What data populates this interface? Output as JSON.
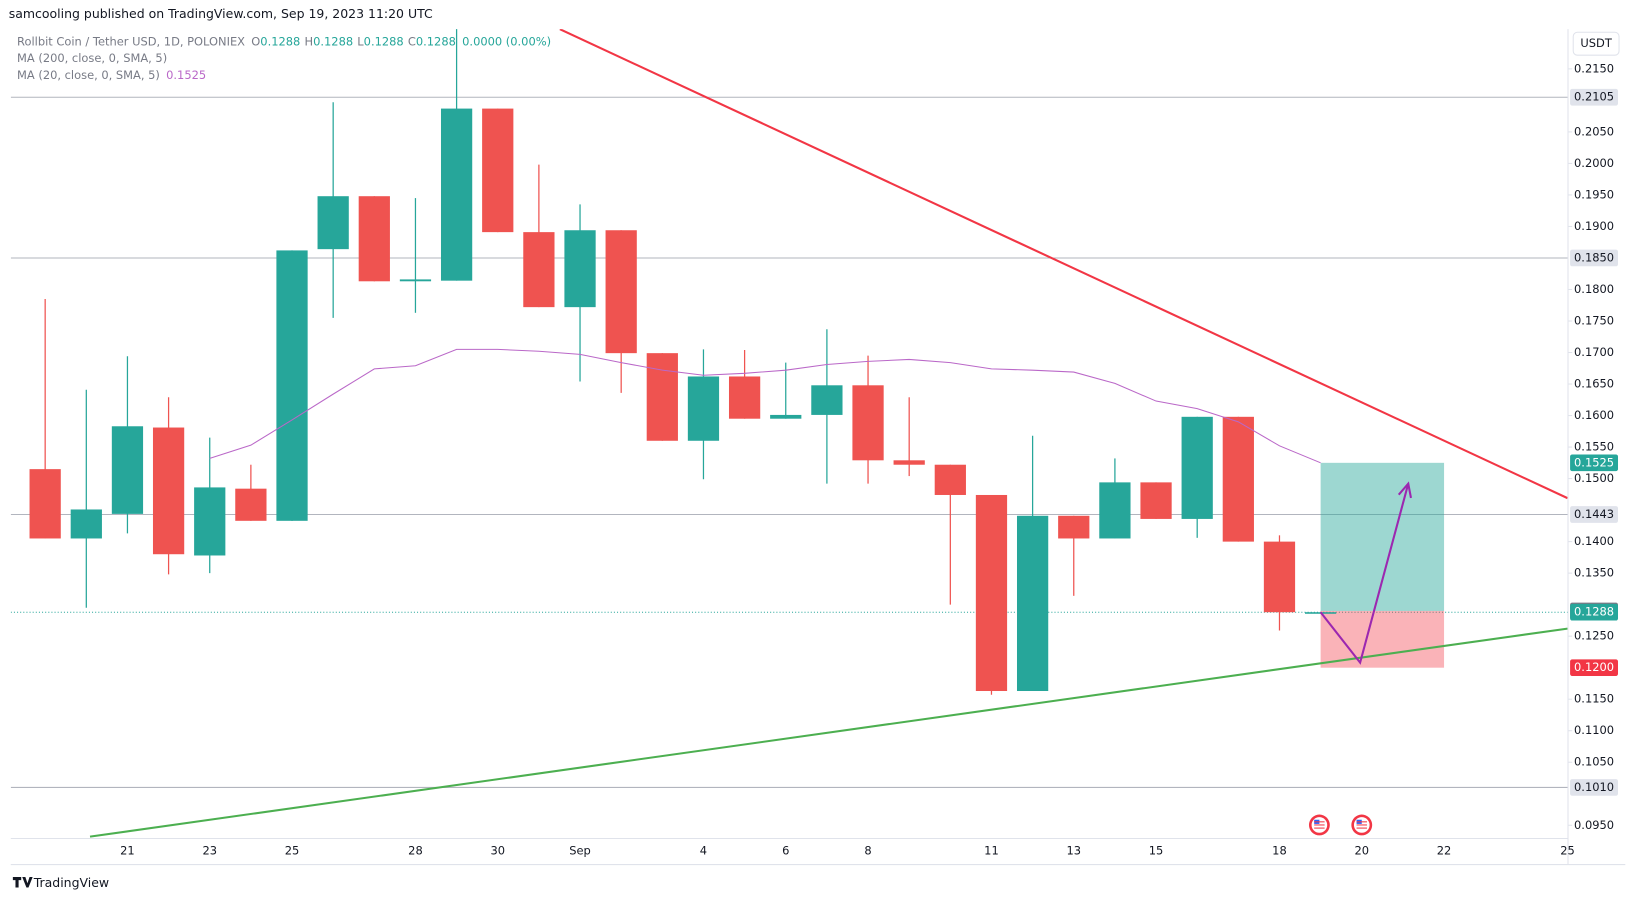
{
  "header": {
    "publisher": "samcooling published on TradingView.com, Sep 19, 2023 11:20 UTC"
  },
  "chart_data": {
    "type": "candlestick",
    "symbol": "Rollbit Coin / Tether USD, 1D, POLONIEX",
    "ohlc_legend": [
      {
        "key": "O",
        "value": "0.1288"
      },
      {
        "key": "H",
        "value": "0.1288"
      },
      {
        "key": "L",
        "value": "0.1288"
      },
      {
        "key": "C",
        "value": "0.1288"
      }
    ],
    "change": "0.0000 (0.00%)",
    "indicators": [
      {
        "name": "MA (200, close, 0, SMA, 5)"
      },
      {
        "name": "MA (20, close, 0, SMA, 5)",
        "value_label": "0.1525",
        "color": "#ba68c8",
        "values": [
          null,
          null,
          null,
          null,
          null,
          0.1532,
          0.1553,
          0.1593,
          0.1634,
          0.1674,
          0.1679,
          0.1705,
          0.1705,
          0.1702,
          0.1697,
          0.1684,
          0.1672,
          0.1664,
          0.1667,
          0.1672,
          0.1681,
          0.1686,
          0.1689,
          0.1684,
          0.1674,
          0.1672,
          0.1669,
          0.1651,
          0.1623,
          0.1611,
          0.159,
          0.1552,
          0.1525,
          null,
          null,
          null,
          null,
          null,
          null
        ]
      }
    ],
    "currency": "USDT",
    "categories": [
      null,
      null,
      null,
      "21",
      null,
      "23",
      null,
      "25",
      null,
      null,
      "28",
      null,
      "30",
      null,
      "Sep",
      null,
      null,
      "4",
      null,
      "6",
      null,
      "8",
      null,
      null,
      "11",
      null,
      "13",
      null,
      "15",
      null,
      null,
      "18",
      null,
      "20",
      null,
      "22",
      null,
      null,
      "25"
    ],
    "open": [
      null,
      0.1515,
      0.1405,
      0.1444,
      0.1581,
      0.1378,
      0.1484,
      0.1433,
      0.1864,
      0.1948,
      0.1813,
      0.1814,
      0.2087,
      0.1891,
      0.1772,
      0.1894,
      0.1699,
      0.156,
      0.1662,
      0.1595,
      0.1601,
      0.1648,
      0.1529,
      0.1522,
      0.1474,
      0.1163,
      0.1441,
      0.1405,
      0.1494,
      0.1436,
      0.1598,
      0.14,
      0.1288,
      null,
      null,
      null,
      null,
      null,
      null
    ],
    "high": [
      null,
      0.1785,
      0.1641,
      0.1694,
      0.1629,
      0.1565,
      0.1522,
      0.1862,
      0.2097,
      0.1948,
      0.1945,
      0.2215,
      0.2087,
      0.1998,
      0.1935,
      0.1894,
      0.1699,
      0.1705,
      0.1704,
      0.1684,
      0.1737,
      0.1695,
      0.1629,
      0.1522,
      0.1474,
      0.1568,
      0.1441,
      0.1532,
      0.1494,
      0.1598,
      0.1598,
      0.141,
      0.1288,
      null,
      null,
      null,
      null,
      null,
      null
    ],
    "low": [
      null,
      0.1405,
      0.1295,
      0.1413,
      0.1348,
      0.135,
      0.1433,
      0.1433,
      0.1755,
      0.1813,
      0.1763,
      0.1814,
      0.1891,
      0.1772,
      0.1654,
      0.1636,
      0.156,
      0.1499,
      0.1595,
      0.1595,
      0.1492,
      0.1492,
      0.1504,
      0.13,
      0.1157,
      0.1163,
      0.1314,
      0.1405,
      0.1436,
      0.1406,
      0.14,
      0.1259,
      0.1288,
      null,
      null,
      null,
      null,
      null,
      null
    ],
    "close": [
      null,
      0.1405,
      0.1451,
      0.1583,
      0.138,
      0.1486,
      0.1433,
      0.1862,
      0.1948,
      0.1813,
      0.1816,
      0.2087,
      0.1891,
      0.1772,
      0.1894,
      0.1699,
      0.156,
      0.1662,
      0.1595,
      0.1601,
      0.1648,
      0.1529,
      0.1522,
      0.1474,
      0.1163,
      0.1441,
      0.1405,
      0.1494,
      0.1436,
      0.1598,
      0.14,
      0.1288,
      0.1288,
      null,
      null,
      null,
      null,
      null,
      null
    ],
    "colors": {
      "up": "#26a69a",
      "down": "#ef5350"
    },
    "ylim": [
      0.0929,
      0.2213
    ],
    "yticks": [
      {
        "value": 0.215,
        "label": "0.2150"
      },
      {
        "value": 0.205,
        "label": "0.2050"
      },
      {
        "value": 0.2,
        "label": "0.2000"
      },
      {
        "value": 0.195,
        "label": "0.1950"
      },
      {
        "value": 0.19,
        "label": "0.1900"
      },
      {
        "value": 0.18,
        "label": "0.1800"
      },
      {
        "value": 0.175,
        "label": "0.1750"
      },
      {
        "value": 0.17,
        "label": "0.1700"
      },
      {
        "value": 0.165,
        "label": "0.1650"
      },
      {
        "value": 0.16,
        "label": "0.1600"
      },
      {
        "value": 0.155,
        "label": "0.1550"
      },
      {
        "value": 0.15,
        "label": "0.1500"
      },
      {
        "value": 0.14,
        "label": "0.1400"
      },
      {
        "value": 0.135,
        "label": "0.1350"
      },
      {
        "value": 0.125,
        "label": "0.1250"
      },
      {
        "value": 0.115,
        "label": "0.1150"
      },
      {
        "value": 0.11,
        "label": "0.1100"
      },
      {
        "value": 0.105,
        "label": "0.1050"
      },
      {
        "value": 0.095,
        "label": "0.0950"
      }
    ],
    "levels": [
      {
        "value": 0.2105,
        "label": "0.2105"
      },
      {
        "value": 0.185,
        "label": "0.1850"
      },
      {
        "value": 0.1443,
        "label": "0.1443"
      },
      {
        "value": 0.101,
        "label": "0.1010"
      }
    ],
    "last_price": {
      "value": 0.1288,
      "label": "0.1288"
    },
    "trendlines": [
      {
        "color": "#f23645",
        "x": [
          13.51,
          38
        ],
        "y": [
          0.2213,
          0.1469
        ]
      },
      {
        "color": "#4caf50",
        "x": [
          2.09,
          38
        ],
        "y": [
          0.0932,
          0.1262
        ]
      }
    ],
    "position": {
      "x": [
        32,
        35
      ],
      "entry": {
        "value": 0.129,
        "label": "0.1290"
      },
      "target": {
        "value": 0.1525,
        "label": "0.1525"
      },
      "stop": {
        "value": 0.12,
        "label": "0.1200"
      }
    },
    "arrow": {
      "color": "#9c27b0",
      "x": [
        32,
        32.96,
        34.13
      ],
      "y": [
        0.1288,
        0.1208,
        0.1492
      ]
    },
    "events": {
      "x": [
        31.97,
        33
      ]
    }
  },
  "footer": {
    "logo": "TradingView"
  }
}
